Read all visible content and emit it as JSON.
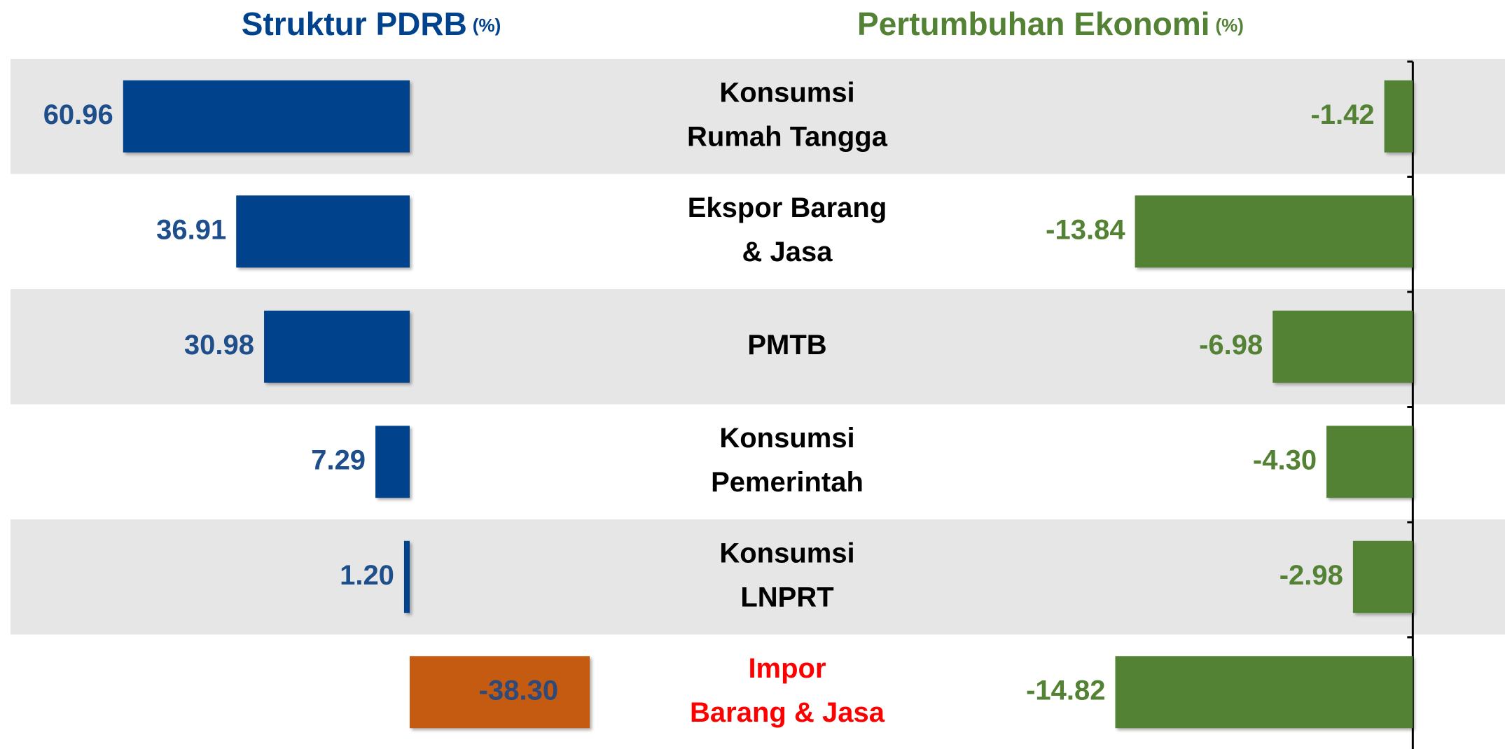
{
  "chart_data": [
    {
      "type": "bar",
      "orientation": "horizontal",
      "title": "Struktur PDRB",
      "unit": "(%)",
      "categories": [
        [
          "Konsumsi",
          "Rumah Tangga"
        ],
        [
          "Ekspor Barang",
          "& Jasa"
        ],
        [
          "PMTB"
        ],
        [
          "Konsumsi",
          "Pemerintah"
        ],
        [
          "Konsumsi",
          "LNPRT"
        ],
        [
          "Impor",
          "Barang & Jasa"
        ]
      ],
      "category_colors": [
        "#000000",
        "#000000",
        "#000000",
        "#000000",
        "#000000",
        "#ff0000"
      ],
      "values": [
        60.96,
        36.91,
        30.98,
        7.29,
        1.2,
        -38.3
      ],
      "value_labels": [
        "60.96",
        "36.91",
        "30.98",
        "7.29",
        "1.20",
        "-38.30"
      ],
      "colors": [
        "#00428c",
        "#00428c",
        "#00428c",
        "#00428c",
        "#00428c",
        "#c55a11"
      ],
      "label_color": "#1f4e8c",
      "title_color": "#00428c",
      "xlim": [
        80,
        -80
      ]
    },
    {
      "type": "bar",
      "orientation": "horizontal",
      "title": "Pertumbuhan Ekonomi",
      "unit": "(%)",
      "values": [
        -1.42,
        -13.84,
        -6.98,
        -4.3,
        -2.98,
        -14.82
      ],
      "value_labels": [
        "-1.42",
        "-13.84",
        "-6.98",
        "-4.30",
        "-2.98",
        "-14.82"
      ],
      "color": "#548235",
      "label_color": "#548235",
      "title_color": "#548235",
      "xlim": [
        -20,
        2.5
      ]
    }
  ]
}
